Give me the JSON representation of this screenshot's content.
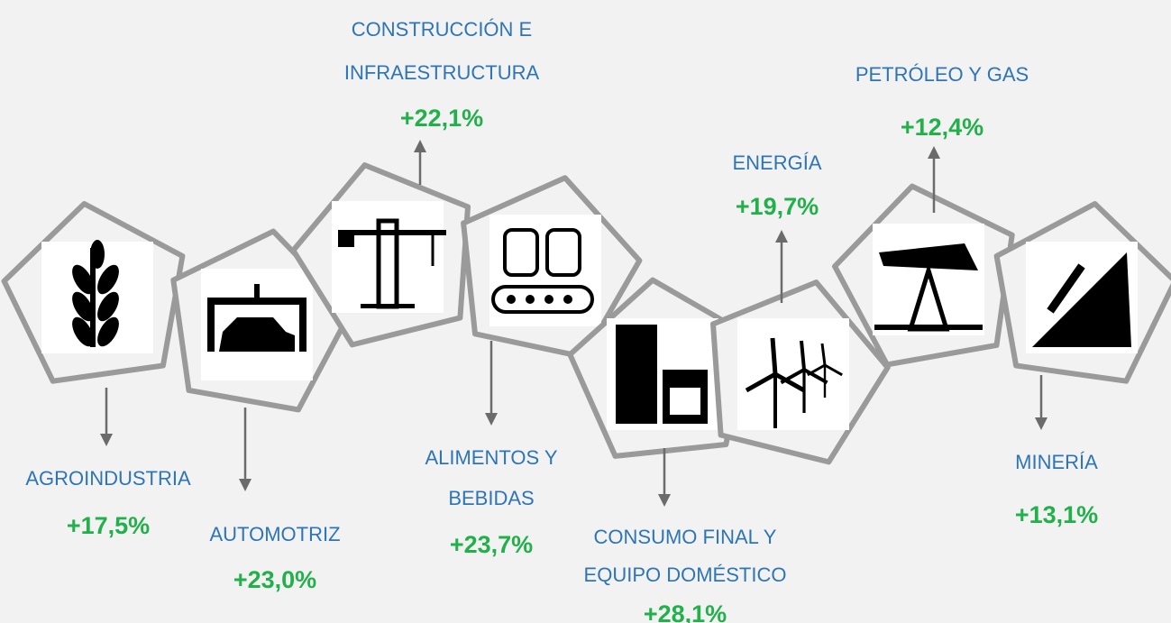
{
  "sectors": [
    {
      "label": [
        "AGROINDUSTRIA"
      ],
      "value": "+17,5%"
    },
    {
      "label": [
        "AUTOMOTRIZ"
      ],
      "value": "+23,0%"
    },
    {
      "label": [
        "CONSTRUCCIÓN E",
        "INFRAESTRUCTURA"
      ],
      "value": "+22,1%"
    },
    {
      "label": [
        "ALIMENTOS Y",
        "BEBIDAS"
      ],
      "value": "+23,7%"
    },
    {
      "label": [
        "CONSUMO FINAL Y",
        "EQUIPO DOMÉSTICO"
      ],
      "value": "+28,1%"
    },
    {
      "label": [
        "ENERGÍA"
      ],
      "value": "+19,7%"
    },
    {
      "label": [
        "PETRÓLEO Y GAS"
      ],
      "value": "+12,4%"
    },
    {
      "label": [
        "MINERÍA"
      ],
      "value": "+13,1%"
    }
  ]
}
